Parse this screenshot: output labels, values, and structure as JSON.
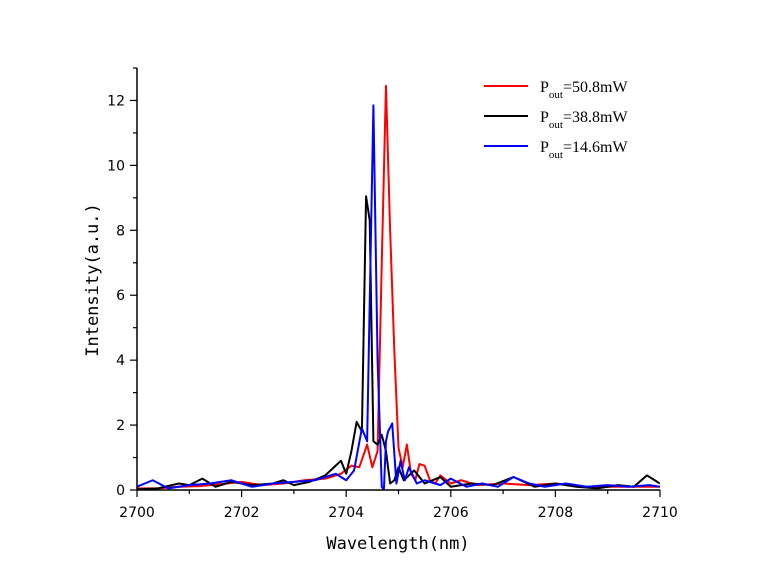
{
  "chart_data": {
    "type": "line",
    "title": "",
    "xlabel": "Wavelength(nm)",
    "ylabel": "Intensity(a.u.)",
    "xlim": [
      2700,
      2710
    ],
    "ylim": [
      0,
      13
    ],
    "xticks": [
      2700,
      2702,
      2704,
      2706,
      2708,
      2710
    ],
    "yticks": [
      0,
      2,
      4,
      6,
      8,
      10,
      12
    ],
    "legend_position": "top-right",
    "series": [
      {
        "name": "Pout=50.8mW",
        "label_main": "P",
        "label_sub": "out",
        "label_rest": "=50.8mW",
        "color": "#ff0000",
        "x": [
          2700.0,
          2700.4,
          2700.8,
          2701.2,
          2701.6,
          2702.0,
          2702.4,
          2702.8,
          2703.2,
          2703.6,
          2703.9,
          2704.1,
          2704.25,
          2704.4,
          2704.5,
          2704.6,
          2704.68,
          2704.76,
          2704.84,
          2704.92,
          2705.0,
          2705.08,
          2705.16,
          2705.24,
          2705.32,
          2705.4,
          2705.5,
          2705.6,
          2705.7,
          2705.8,
          2706.0,
          2706.2,
          2706.5,
          2707.0,
          2707.5,
          2708.0,
          2708.5,
          2709.0,
          2709.5,
          2710.0
        ],
        "y": [
          0.05,
          0.05,
          0.1,
          0.12,
          0.18,
          0.25,
          0.15,
          0.2,
          0.3,
          0.35,
          0.5,
          0.75,
          0.7,
          1.4,
          0.7,
          1.2,
          7.0,
          12.45,
          8.0,
          4.3,
          1.3,
          0.7,
          1.4,
          0.5,
          0.3,
          0.8,
          0.75,
          0.3,
          0.2,
          0.45,
          0.2,
          0.3,
          0.15,
          0.2,
          0.15,
          0.2,
          0.1,
          0.1,
          0.1,
          0.1
        ]
      },
      {
        "name": "Pout=38.8mW",
        "label_main": "P",
        "label_sub": "out",
        "label_rest": "=38.8mW",
        "color": "#000000",
        "x": [
          2700.0,
          2700.4,
          2700.8,
          2701.0,
          2701.25,
          2701.5,
          2701.8,
          2702.2,
          2702.6,
          2702.8,
          2703.0,
          2703.3,
          2703.6,
          2703.9,
          2704.0,
          2704.1,
          2704.2,
          2704.3,
          2704.38,
          2704.45,
          2704.52,
          2704.6,
          2704.68,
          2704.76,
          2704.84,
          2704.92,
          2705.0,
          2705.1,
          2705.3,
          2705.5,
          2705.8,
          2706.0,
          2706.4,
          2706.8,
          2707.2,
          2707.6,
          2708.0,
          2708.4,
          2708.8,
          2709.2,
          2709.5,
          2709.75,
          2710.0
        ],
        "y": [
          0.02,
          0.05,
          0.2,
          0.15,
          0.35,
          0.1,
          0.25,
          0.15,
          0.2,
          0.3,
          0.15,
          0.25,
          0.45,
          0.9,
          0.5,
          1.2,
          2.1,
          1.8,
          9.05,
          8.3,
          1.5,
          1.4,
          1.7,
          1.2,
          0.2,
          0.3,
          0.7,
          0.3,
          0.6,
          0.2,
          0.4,
          0.1,
          0.2,
          0.15,
          0.4,
          0.1,
          0.2,
          0.1,
          0.05,
          0.15,
          0.1,
          0.45,
          0.2
        ]
      },
      {
        "name": "Pout=14.6mW",
        "label_main": "P",
        "label_sub": "out",
        "label_rest": "=14.6mW",
        "color": "#0000ff",
        "x": [
          2700.0,
          2700.3,
          2700.6,
          2701.0,
          2701.4,
          2701.8,
          2702.2,
          2702.6,
          2703.0,
          2703.4,
          2703.8,
          2704.0,
          2704.15,
          2704.3,
          2704.4,
          2704.52,
          2704.6,
          2704.68,
          2704.72,
          2704.76,
          2704.8,
          2704.88,
          2704.96,
          2705.04,
          2705.12,
          2705.2,
          2705.35,
          2705.5,
          2705.8,
          2706.0,
          2706.3,
          2706.6,
          2706.9,
          2707.2,
          2707.5,
          2707.8,
          2708.2,
          2708.6,
          2709.0,
          2709.4,
          2709.8,
          2710.0
        ],
        "y": [
          0.1,
          0.3,
          0.05,
          0.15,
          0.2,
          0.3,
          0.1,
          0.2,
          0.25,
          0.3,
          0.5,
          0.3,
          0.6,
          1.9,
          1.5,
          11.85,
          4.0,
          0.1,
          0.0,
          1.5,
          1.8,
          2.05,
          0.2,
          0.9,
          0.3,
          0.7,
          0.2,
          0.3,
          0.15,
          0.35,
          0.1,
          0.2,
          0.1,
          0.4,
          0.2,
          0.1,
          0.2,
          0.1,
          0.15,
          0.1,
          0.15,
          0.1
        ]
      }
    ]
  }
}
